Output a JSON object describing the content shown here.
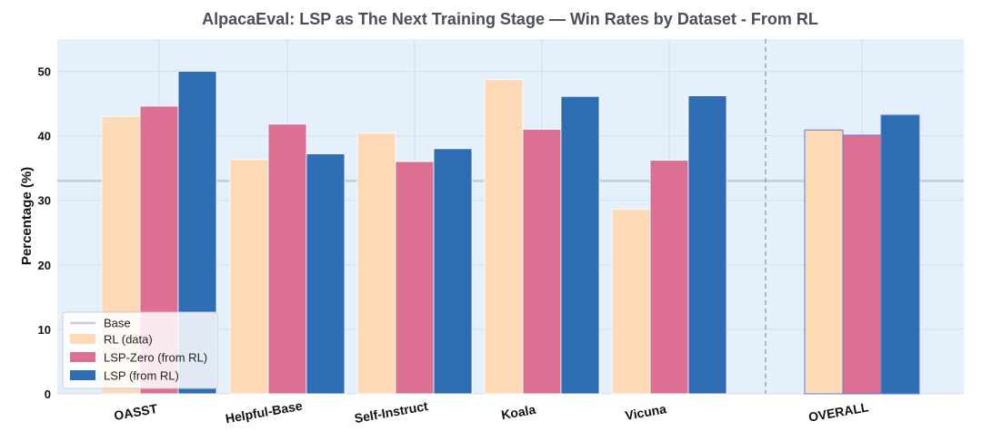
{
  "chart_data": {
    "type": "bar",
    "title": "AlpacaEval: LSP as The Next Training Stage  — Win Rates by Dataset - From RL",
    "xlabel": "",
    "ylabel": "Percentage (%)",
    "ylim": [
      0,
      55
    ],
    "yticks": [
      0,
      10,
      20,
      30,
      40,
      50
    ],
    "grid": true,
    "legend_position": "bottom-left",
    "categories": [
      "OASST",
      "Helpful-Base",
      "Self-Instruct",
      "Koala",
      "Vicuna",
      "OVERALL"
    ],
    "base": {
      "name": "Base",
      "value": 33,
      "color": "#c8ccd2"
    },
    "series": [
      {
        "name": "RL (data)",
        "color": "#fdd9b5",
        "values": [
          43.0,
          36.3,
          40.4,
          48.7,
          28.6,
          40.9
        ]
      },
      {
        "name": "LSP-Zero (from RL)",
        "color": "#db7093",
        "values": [
          44.6,
          41.8,
          36.0,
          41.0,
          36.2,
          40.1
        ]
      },
      {
        "name": "LSP (from RL)",
        "color": "#2e6db4",
        "values": [
          50.0,
          37.2,
          38.0,
          46.1,
          46.2,
          43.2
        ]
      }
    ]
  }
}
